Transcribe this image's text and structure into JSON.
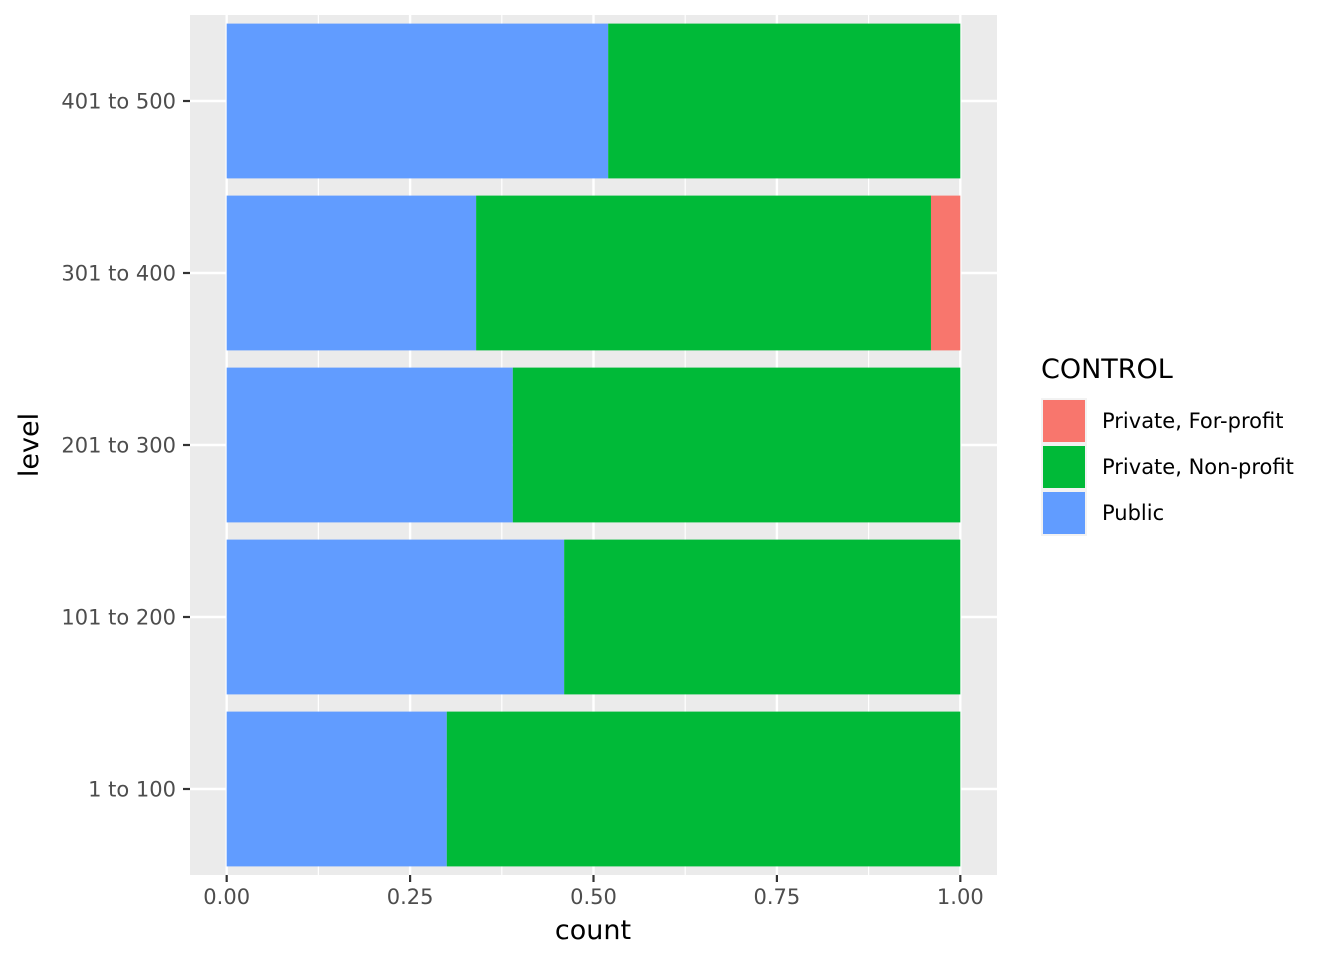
{
  "chart_data": {
    "type": "bar",
    "orientation": "horizontal",
    "stacked": true,
    "categories": [
      "1 to 100",
      "101 to 200",
      "201 to 300",
      "301 to 400",
      "401 to 500"
    ],
    "series": [
      {
        "name": "Public",
        "color": "#619CFF",
        "values": [
          0.3,
          0.46,
          0.39,
          0.34,
          0.52
        ]
      },
      {
        "name": "Private, Non-profit",
        "color": "#00BA38",
        "values": [
          0.7,
          0.54,
          0.61,
          0.62,
          0.48
        ]
      },
      {
        "name": "Private, For-profit",
        "color": "#F8766D",
        "values": [
          0.0,
          0.0,
          0.0,
          0.04,
          0.0
        ]
      }
    ],
    "xlabel": "count",
    "ylabel": "level",
    "xlim": [
      -0.05,
      1.05
    ],
    "xticks": [
      0,
      0.25,
      0.5,
      0.75,
      1
    ],
    "xtick_labels": [
      "0.00",
      "0.25",
      "0.50",
      "0.75",
      "1.00"
    ],
    "grid": true,
    "legend": {
      "title": "CONTROL",
      "position": "right",
      "entries": [
        "Private, For-profit",
        "Private, Non-profit",
        "Public"
      ]
    },
    "panel_background": "#EBEBEB"
  }
}
